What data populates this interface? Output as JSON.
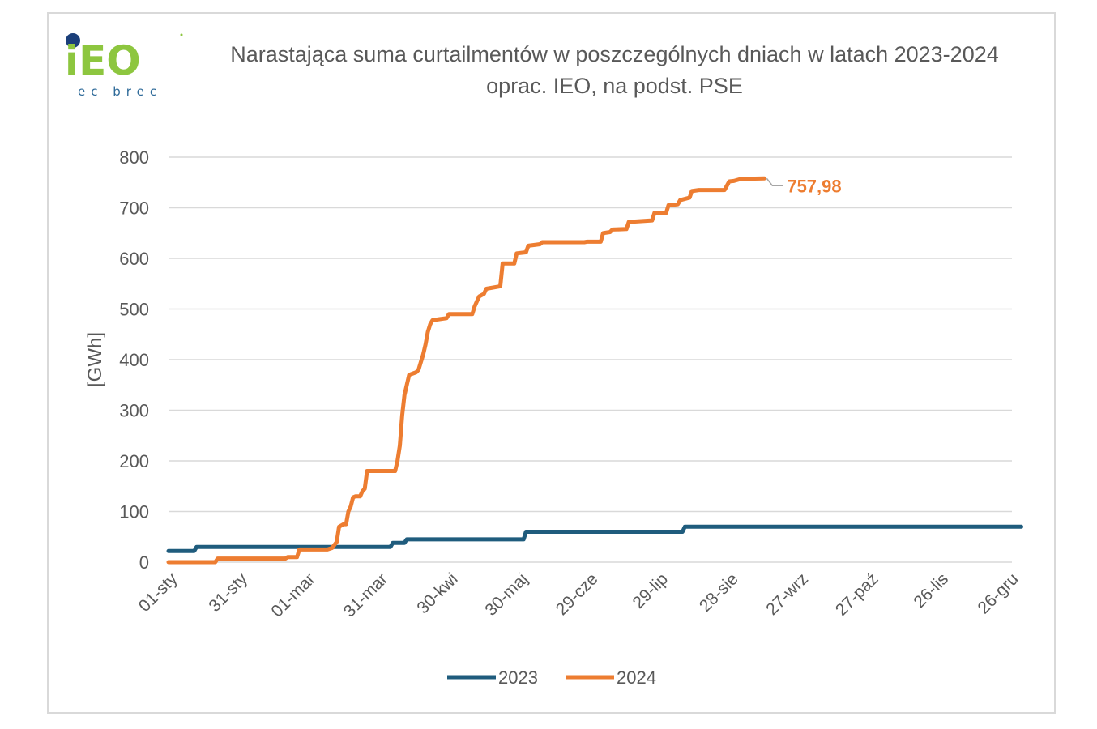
{
  "logo": {
    "text": "ec brec",
    "brand": "iEO",
    "colors": {
      "green": "#8dc63f",
      "blue": "#1b3f7a"
    }
  },
  "chart_data": {
    "type": "line",
    "title": "Narastająca suma curtailmentów w poszczególnych dniach w latach 2023-2024",
    "subtitle": "oprac. IEO, na podst. PSE",
    "xlabel": "",
    "ylabel": "[GWh]",
    "ylim": [
      0,
      800
    ],
    "yticks": [
      "0",
      "100",
      "200",
      "300",
      "400",
      "500",
      "600",
      "700",
      "800"
    ],
    "xticks": [
      "01-sty",
      "31-sty",
      "01-mar",
      "31-mar",
      "30-kwi",
      "30-maj",
      "29-cze",
      "29-lip",
      "28-sie",
      "27-wrz",
      "27-paź",
      "26-lis",
      "26-gru"
    ],
    "x_unit": "day of year",
    "grid": true,
    "legend": "bottom",
    "series": [
      {
        "name": "2023",
        "color": "#1f5c7d",
        "points": [
          [
            0,
            22
          ],
          [
            11,
            22
          ],
          [
            12,
            30
          ],
          [
            57,
            30
          ],
          [
            95,
            30
          ],
          [
            96,
            38
          ],
          [
            101,
            38
          ],
          [
            102,
            45
          ],
          [
            152,
            45
          ],
          [
            153,
            60
          ],
          [
            220,
            60
          ],
          [
            221,
            70
          ],
          [
            285,
            70
          ],
          [
            300,
            70
          ],
          [
            365,
            70
          ]
        ]
      },
      {
        "name": "2024",
        "color": "#ed7d31",
        "points": [
          [
            0,
            0
          ],
          [
            20,
            0
          ],
          [
            21,
            7
          ],
          [
            50,
            7
          ],
          [
            51,
            10
          ],
          [
            55,
            10
          ],
          [
            56,
            25
          ],
          [
            68,
            25
          ],
          [
            70,
            28
          ],
          [
            72,
            40
          ],
          [
            73,
            70
          ],
          [
            75,
            75
          ],
          [
            76,
            75
          ],
          [
            77,
            100
          ],
          [
            78,
            110
          ],
          [
            79,
            128
          ],
          [
            80,
            130
          ],
          [
            82,
            130
          ],
          [
            83,
            140
          ],
          [
            84,
            145
          ],
          [
            85,
            180
          ],
          [
            97,
            180
          ],
          [
            98,
            200
          ],
          [
            99,
            230
          ],
          [
            100,
            290
          ],
          [
            101,
            330
          ],
          [
            102,
            350
          ],
          [
            103,
            370
          ],
          [
            106,
            375
          ],
          [
            107,
            380
          ],
          [
            108,
            395
          ],
          [
            109,
            410
          ],
          [
            110,
            430
          ],
          [
            111,
            455
          ],
          [
            112,
            470
          ],
          [
            113,
            478
          ],
          [
            116,
            480
          ],
          [
            119,
            482
          ],
          [
            120,
            490
          ],
          [
            130,
            490
          ],
          [
            131,
            505
          ],
          [
            132,
            515
          ],
          [
            133,
            525
          ],
          [
            135,
            530
          ],
          [
            136,
            540
          ],
          [
            142,
            545
          ],
          [
            143,
            590
          ],
          [
            148,
            590
          ],
          [
            149,
            610
          ],
          [
            153,
            612
          ],
          [
            154,
            625
          ],
          [
            159,
            628
          ],
          [
            160,
            632
          ],
          [
            178,
            632
          ],
          [
            179,
            633
          ],
          [
            185,
            633
          ],
          [
            186,
            650
          ],
          [
            189,
            652
          ],
          [
            190,
            657
          ],
          [
            196,
            658
          ],
          [
            197,
            672
          ],
          [
            207,
            675
          ],
          [
            208,
            690
          ],
          [
            213,
            690
          ],
          [
            214,
            705
          ],
          [
            218,
            707
          ],
          [
            219,
            715
          ],
          [
            223,
            720
          ],
          [
            224,
            733
          ],
          [
            227,
            735
          ],
          [
            238,
            735
          ],
          [
            240,
            752
          ],
          [
            242,
            753
          ],
          [
            245,
            757
          ],
          [
            255,
            757.98
          ]
        ]
      }
    ],
    "annotations": [
      {
        "text": "757,98",
        "series": "2024",
        "x": 255,
        "y": 757.98
      }
    ]
  }
}
